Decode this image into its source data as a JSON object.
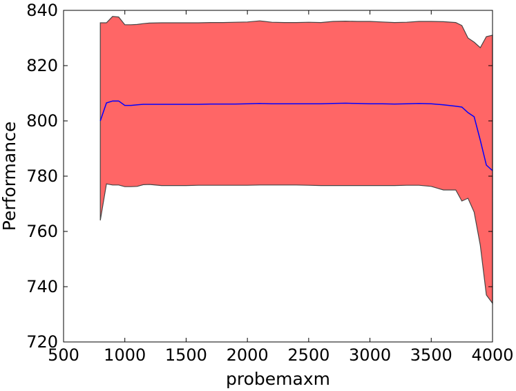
{
  "chart_data": {
    "type": "area",
    "title": "",
    "xlabel": "probemaxm",
    "ylabel": "Performance",
    "xlim": [
      500,
      4000
    ],
    "ylim": [
      720,
      840
    ],
    "xticks": [
      500,
      1000,
      1500,
      2000,
      2500,
      3000,
      3500,
      4000
    ],
    "yticks": [
      720,
      740,
      760,
      780,
      800,
      820,
      840
    ],
    "grid": false,
    "colors": {
      "band_fill": "#ff6666",
      "band_edge": "#444444",
      "mean_line": "#0000ff"
    },
    "x": [
      800,
      850,
      900,
      950,
      1000,
      1050,
      1100,
      1150,
      1200,
      1300,
      1400,
      1500,
      1600,
      1700,
      1800,
      1900,
      2000,
      2100,
      2200,
      2300,
      2400,
      2500,
      2600,
      2700,
      2800,
      2900,
      3000,
      3100,
      3200,
      3300,
      3400,
      3500,
      3600,
      3700,
      3750,
      3800,
      3850,
      3900,
      3950,
      4000
    ],
    "series": [
      {
        "role": "upper",
        "values": [
          835.5,
          835.5,
          837.8,
          837.6,
          834.8,
          834.8,
          834.9,
          835.2,
          835.4,
          835.5,
          835.5,
          835.5,
          835.5,
          835.6,
          835.6,
          835.7,
          835.8,
          836.2,
          835.7,
          835.6,
          835.6,
          835.7,
          835.6,
          836.0,
          836.1,
          836.0,
          836.0,
          835.8,
          835.6,
          835.7,
          836.0,
          836.0,
          835.9,
          835.6,
          834.5,
          830.0,
          828.5,
          826.5,
          830.5,
          831.0
        ]
      },
      {
        "role": "mean",
        "values": [
          800.0,
          806.5,
          807.2,
          807.2,
          805.6,
          805.6,
          805.8,
          806.0,
          806.0,
          806.0,
          806.0,
          806.0,
          806.0,
          806.1,
          806.1,
          806.1,
          806.2,
          806.3,
          806.2,
          806.2,
          806.2,
          806.2,
          806.2,
          806.3,
          806.4,
          806.3,
          806.2,
          806.2,
          806.1,
          806.2,
          806.3,
          806.2,
          805.8,
          805.3,
          805.0,
          803.0,
          801.5,
          793.0,
          784.0,
          782.0
        ]
      },
      {
        "role": "lower",
        "values": [
          764.0,
          777.2,
          776.8,
          776.8,
          776.2,
          776.2,
          776.3,
          776.9,
          777.0,
          776.6,
          776.6,
          776.6,
          776.7,
          776.7,
          776.7,
          776.7,
          776.7,
          776.8,
          776.8,
          776.8,
          776.8,
          776.7,
          776.6,
          776.6,
          776.6,
          776.6,
          776.6,
          776.6,
          776.6,
          776.7,
          776.7,
          776.3,
          775.0,
          775.0,
          771.0,
          772.0,
          767.0,
          755.0,
          737.0,
          734.0
        ]
      }
    ]
  }
}
